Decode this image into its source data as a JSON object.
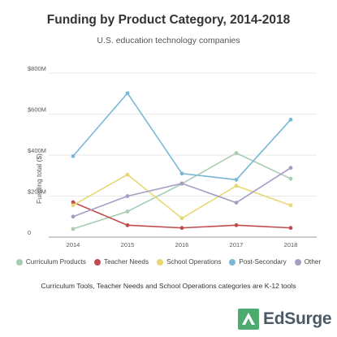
{
  "chart_data": {
    "type": "line",
    "title": "Funding by Product Category, 2014-2018",
    "subtitle": "U.S. education technology companies",
    "ylabel": "Funding total ($)",
    "xlabel": "",
    "x": [
      "2014",
      "2015",
      "2016",
      "2017",
      "2018"
    ],
    "ylim": [
      0,
      800
    ],
    "yticks": [
      0,
      200,
      400,
      600,
      800
    ],
    "ytick_labels": [
      "0",
      "$200M",
      "$400M",
      "$600M",
      "$800M"
    ],
    "grid": true,
    "legend_position": "bottom",
    "series": [
      {
        "name": "Curriculum Products",
        "color": "#a8cdb2",
        "values": [
          40,
          125,
          260,
          410,
          285
        ]
      },
      {
        "name": "Teacher Needs",
        "color": "#c04a4e",
        "values": [
          170,
          58,
          45,
          58,
          45
        ]
      },
      {
        "name": "School Operations",
        "color": "#e8d874",
        "values": [
          155,
          305,
          92,
          250,
          155
        ]
      },
      {
        "name": "Post-Secondary",
        "color": "#7ab8d6",
        "values": [
          395,
          702,
          310,
          280,
          573
        ]
      },
      {
        "name": "Other",
        "color": "#a89bc4",
        "values": [
          100,
          200,
          262,
          168,
          338
        ]
      }
    ]
  },
  "footnote": "Curriculum Tools, Teacher Needs and School Operations categories are K-12 tools",
  "logo": {
    "text": "EdSurge",
    "color": "#4cab6e"
  }
}
